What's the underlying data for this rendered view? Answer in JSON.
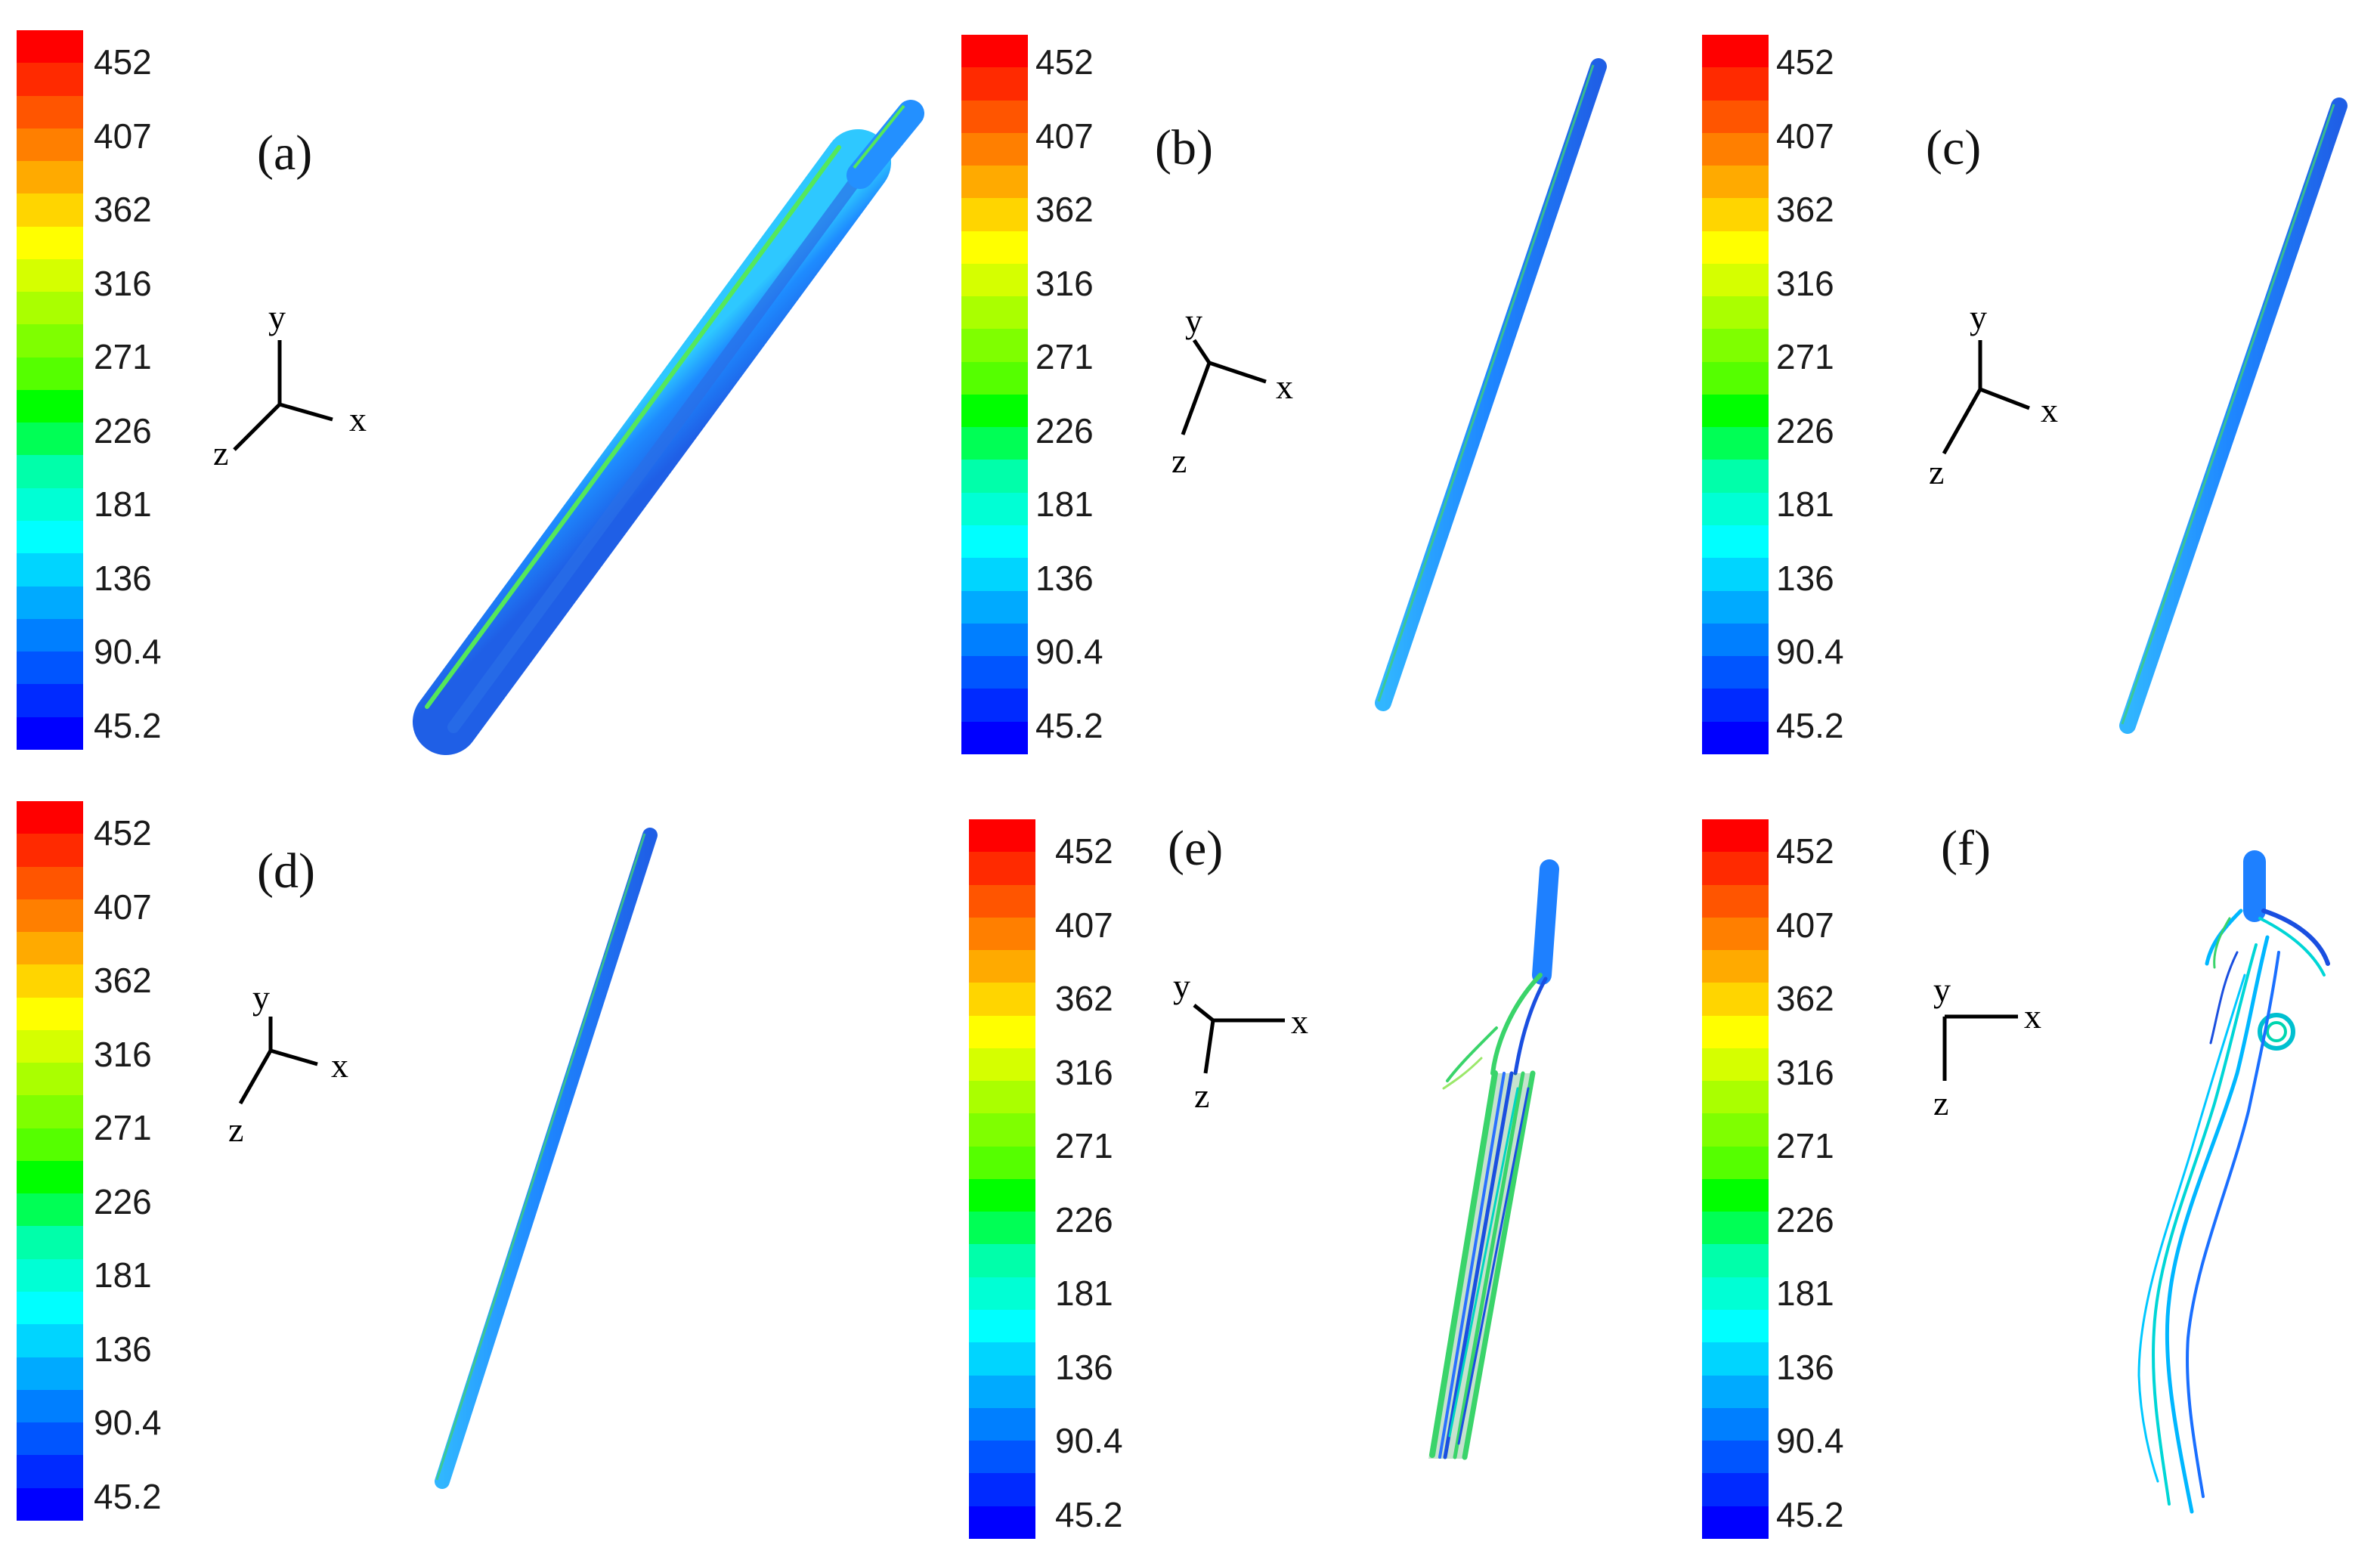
{
  "legend": {
    "colors": [
      "#ff0000",
      "#ff2a00",
      "#ff5500",
      "#ff7f00",
      "#ffaa00",
      "#ffd500",
      "#ffff00",
      "#d5ff00",
      "#aaff00",
      "#7fff00",
      "#55ff00",
      "#00ff00",
      "#00ff55",
      "#00ffaa",
      "#00ffd5",
      "#00ffff",
      "#00d5ff",
      "#00aaff",
      "#007fff",
      "#0055ff",
      "#002aff",
      "#0000ff"
    ],
    "ticks": [
      "452",
      "407",
      "362",
      "316",
      "271",
      "226",
      "181",
      "136",
      "90.4",
      "45.2"
    ]
  },
  "axis_labels": {
    "x": "x",
    "y": "y",
    "z": "z"
  },
  "panels": [
    {
      "id": "a",
      "label": "(a)"
    },
    {
      "id": "b",
      "label": "(b)"
    },
    {
      "id": "c",
      "label": "(c)"
    },
    {
      "id": "d",
      "label": "(d)"
    },
    {
      "id": "e",
      "label": "(e)"
    },
    {
      "id": "f",
      "label": "(f)"
    }
  ]
}
